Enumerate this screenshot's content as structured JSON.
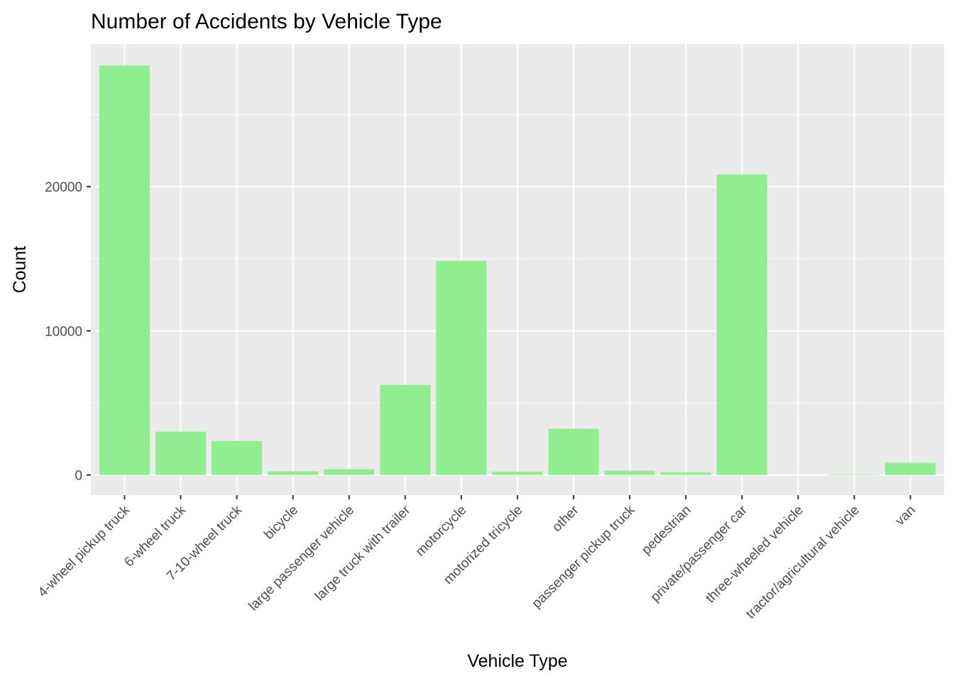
{
  "chart_data": {
    "type": "bar",
    "title": "Number of Accidents by Vehicle Type",
    "xlabel": "Vehicle Type",
    "ylabel": "Count",
    "categories": [
      "4-wheel pickup truck",
      "6-wheel truck",
      "7-10-wheel truck",
      "bicycle",
      "large passenger vehicle",
      "large truck with trailer",
      "motorcycle",
      "motorized tricycle",
      "other",
      "passenger pickup truck",
      "pedestrian",
      "private/passenger car",
      "three-wheeled vehicle",
      "tractor/agricultural vehicle",
      "van"
    ],
    "values": [
      28400,
      3000,
      2350,
      250,
      400,
      6250,
      14850,
      230,
      3200,
      300,
      180,
      20850,
      0,
      40,
      850
    ],
    "ylim": [
      -1400,
      29900
    ],
    "yticks": [
      0,
      10000,
      20000
    ],
    "ytick_labels": [
      "0",
      "10000",
      "20000"
    ],
    "grid": true,
    "legend": "none",
    "colors": {
      "bar": "#90EE90",
      "panel": "#EBEBEB",
      "grid": "#FFFFFF",
      "text": "#000000",
      "tick_text": "#4D4D4D",
      "tick_mark": "#333333"
    }
  }
}
